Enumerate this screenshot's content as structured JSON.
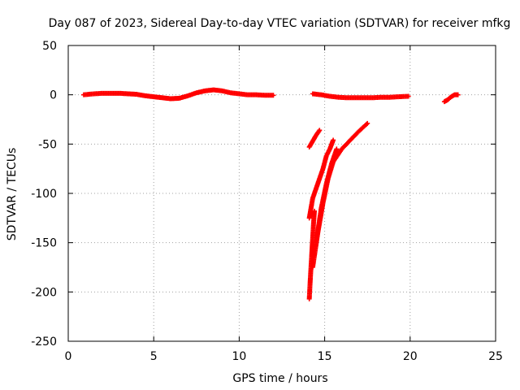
{
  "chart_data": {
    "type": "scatter",
    "title": "Day 087 of 2023, Sidereal Day-to-day VTEC variation (SDTVAR) for receiver mfkg",
    "xlabel": "GPS time / hours",
    "ylabel": "SDTVAR / TECUs",
    "xlim": [
      0,
      25
    ],
    "ylim": [
      -250,
      50
    ],
    "x_ticks": [
      0,
      5,
      10,
      15,
      20,
      25
    ],
    "y_ticks": [
      -250,
      -200,
      -150,
      -100,
      -50,
      0,
      50
    ],
    "grid": true,
    "marker": "+",
    "series": [
      {
        "name": "SDTVAR",
        "color": "#ff0000",
        "segments": [
          {
            "x": [
              0.9,
              1.5,
              2.0,
              2.5,
              3.0,
              3.5,
              4.0,
              4.5,
              5.0,
              5.5,
              6.0,
              6.5,
              7.0,
              7.5,
              8.0,
              8.5,
              9.0,
              9.5,
              10.0,
              10.5,
              11.0,
              11.5,
              12.0
            ],
            "y": [
              0,
              1,
              1.5,
              1.5,
              1.5,
              1,
              0.5,
              -1,
              -2,
              -3,
              -4,
              -3.5,
              -1,
              2,
              4,
              5,
              4,
              2,
              1,
              0,
              0,
              -0.5,
              -0.5
            ]
          },
          {
            "x": [
              14.3,
              14.8,
              15.3,
              15.8,
              16.3,
              16.8,
              17.3,
              17.8,
              18.3,
              18.8,
              19.3,
              19.9
            ],
            "y": [
              1,
              0,
              -1.5,
              -2.5,
              -3,
              -3,
              -3,
              -3,
              -2.5,
              -2.5,
              -2,
              -1.5
            ]
          },
          {
            "x": [
              22.0,
              22.2,
              22.4,
              22.6,
              22.8
            ],
            "y": [
              -7,
              -5,
              -2,
              0,
              0
            ]
          },
          {
            "x": [
              14.1,
              14.3,
              14.5,
              14.7
            ],
            "y": [
              -53,
              -47,
              -41,
              -36
            ]
          },
          {
            "x": [
              14.1,
              14.15,
              14.2,
              14.25,
              14.3,
              14.35,
              14.4
            ],
            "y": [
              -207,
              -190,
              -175,
              -160,
              -145,
              -130,
              -118
            ]
          },
          {
            "x": [
              14.1,
              14.3,
              14.5,
              14.7,
              14.9,
              15.1,
              15.3,
              15.5
            ],
            "y": [
              -125,
              -105,
              -95,
              -85,
              -75,
              -62,
              -55,
              -46
            ]
          },
          {
            "x": [
              14.3,
              14.6,
              14.9,
              15.2,
              15.5,
              16.0,
              16.5,
              17.0,
              17.5
            ],
            "y": [
              -175,
              -140,
              -110,
              -85,
              -68,
              -55,
              -46,
              -37,
              -29
            ]
          },
          {
            "x": [
              14.5,
              14.8,
              15.1,
              15.4,
              15.7
            ],
            "y": [
              -150,
              -115,
              -90,
              -70,
              -55
            ]
          }
        ]
      }
    ]
  }
}
